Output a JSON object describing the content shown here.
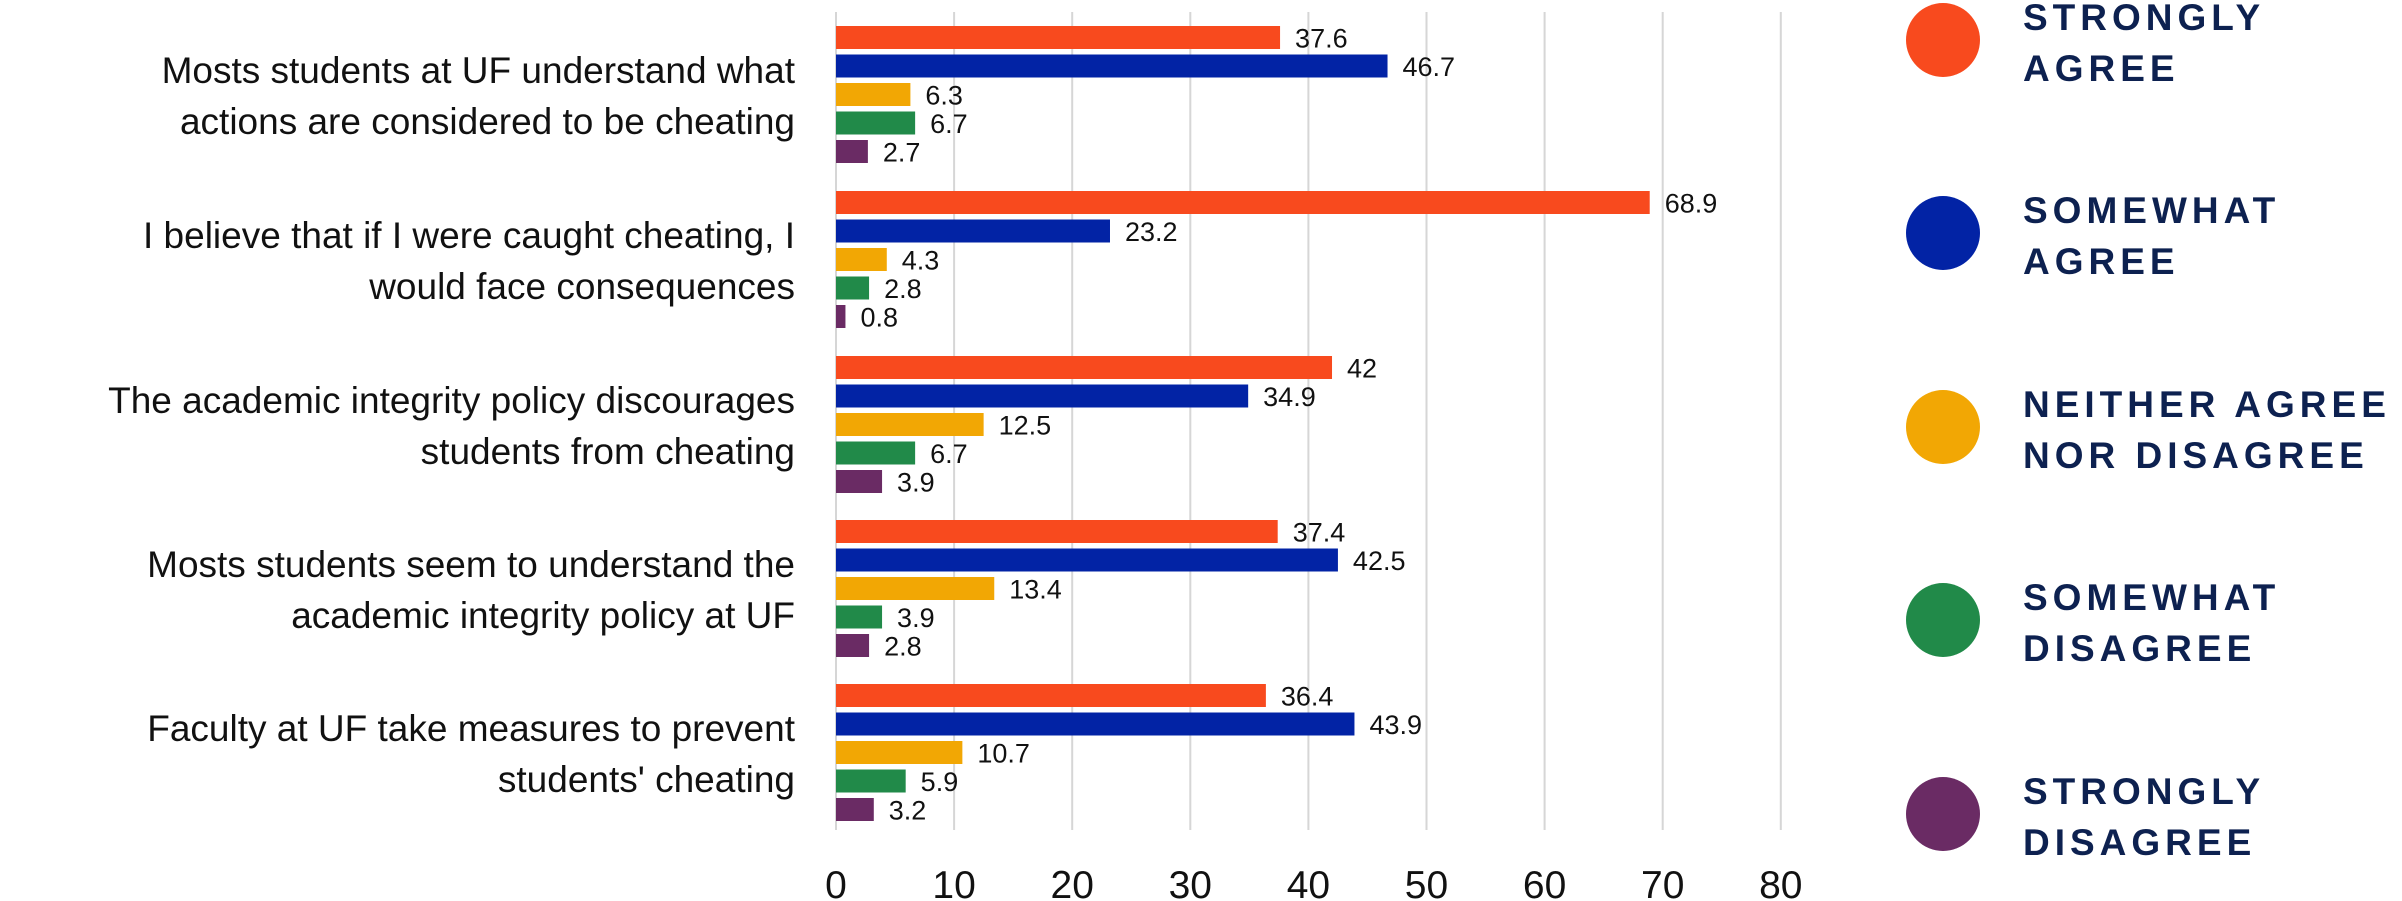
{
  "chart_data": {
    "type": "bar",
    "orientation": "horizontal",
    "categories": [
      [
        "Mosts students at UF understand what",
        "actions are considered to be cheating"
      ],
      [
        "I believe that if I were caught cheating, I",
        "would face consequences"
      ],
      [
        "The academic integrity policy discourages",
        "students from cheating"
      ],
      [
        "Mosts students seem to understand the",
        "academic integrity policy at UF"
      ],
      [
        "Faculty at UF take measures to prevent",
        "students' cheating"
      ]
    ],
    "series": [
      {
        "name": "STRONGLY AGREE",
        "legend_lines": [
          "STRONGLY",
          "AGREE"
        ],
        "color": "#f84a1e",
        "values": [
          37.6,
          68.9,
          42,
          37.4,
          36.4
        ],
        "labels": [
          "37.6",
          "68.9",
          "42",
          "37.4",
          "36.4"
        ]
      },
      {
        "name": "SOMEWHAT AGREE",
        "legend_lines": [
          "SOMEWHAT",
          "AGREE"
        ],
        "color": "#0223a5",
        "values": [
          46.7,
          23.2,
          34.9,
          42.5,
          43.9
        ],
        "labels": [
          "46.7",
          "23.2",
          "34.9",
          "42.5",
          "43.9"
        ]
      },
      {
        "name": "NEITHER AGREE NOR DISAGREE",
        "legend_lines": [
          "NEITHER AGREE",
          "NOR DISAGREE"
        ],
        "color": "#f2a704",
        "values": [
          6.3,
          4.3,
          12.5,
          13.4,
          10.7
        ],
        "labels": [
          "6.3",
          "4.3",
          "12.5",
          "13.4",
          "10.7"
        ]
      },
      {
        "name": "SOMEWHAT DISAGREE",
        "legend_lines": [
          "SOMEWHAT",
          "DISAGREE"
        ],
        "color": "#218a49",
        "values": [
          6.7,
          2.8,
          6.7,
          3.9,
          5.9
        ],
        "labels": [
          "6.7",
          "2.8",
          "6.7",
          "3.9",
          "5.9"
        ]
      },
      {
        "name": "STRONGLY DISAGREE",
        "legend_lines": [
          "STRONGLY",
          "DISAGREE"
        ],
        "color": "#6a2b64",
        "values": [
          2.7,
          0.8,
          3.9,
          2.8,
          3.2
        ],
        "labels": [
          "2.7",
          "0.8",
          "3.9",
          "2.8",
          "3.2"
        ]
      }
    ],
    "xlim": [
      0,
      80
    ],
    "xticks": [
      "0",
      "10",
      "20",
      "30",
      "40",
      "50",
      "60",
      "70",
      "80"
    ],
    "grid": true,
    "legend_position": "right",
    "title": "",
    "xlabel": "",
    "ylabel": ""
  },
  "colors": {
    "legend_text": "#0d2150",
    "gridline": "#d6d6d6",
    "text": "#111111"
  }
}
